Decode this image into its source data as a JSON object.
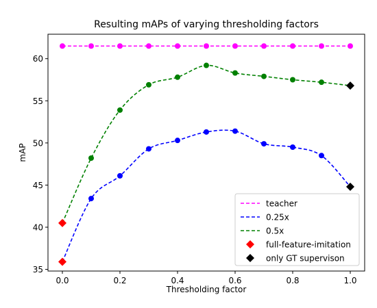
{
  "chart_data": {
    "type": "line",
    "title": "Resulting mAPs of varying thresholding factors",
    "xlabel": "Thresholding factor",
    "ylabel": "mAP",
    "xlim": [
      -0.05,
      1.05
    ],
    "ylim": [
      34.8,
      62.9
    ],
    "xticks": [
      0.0,
      0.2,
      0.4,
      0.6,
      0.8,
      1.0
    ],
    "xtick_labels": [
      "0.0",
      "0.2",
      "0.4",
      "0.6",
      "0.8",
      "1.0"
    ],
    "yticks": [
      35,
      40,
      45,
      50,
      55,
      60
    ],
    "ytick_labels": [
      "35",
      "40",
      "45",
      "50",
      "55",
      "60"
    ],
    "grid": false,
    "legend_position": "lower-right",
    "x": [
      0.1,
      0.2,
      0.3,
      0.4,
      0.5,
      0.6,
      0.7,
      0.8,
      0.9
    ],
    "series": [
      {
        "name": "teacher",
        "color": "#ff00ff",
        "style": "dashed",
        "x": [
          0.0,
          0.1,
          0.2,
          0.3,
          0.4,
          0.5,
          0.6,
          0.7,
          0.8,
          0.9,
          1.0
        ],
        "values": [
          61.5,
          61.5,
          61.5,
          61.5,
          61.5,
          61.5,
          61.5,
          61.5,
          61.5,
          61.5,
          61.5
        ],
        "markers": [
          61.5,
          61.5,
          61.5,
          61.5,
          61.5,
          61.5,
          61.5,
          61.5,
          61.5,
          61.5,
          61.5
        ]
      },
      {
        "name": "0.25x",
        "color": "#0000ff",
        "style": "dashed",
        "x": [
          0.0,
          0.1,
          0.2,
          0.3,
          0.4,
          0.5,
          0.6,
          0.7,
          0.8,
          0.9,
          1.0
        ],
        "values": [
          35.9,
          43.4,
          46.1,
          49.3,
          50.3,
          51.3,
          51.4,
          49.9,
          49.5,
          48.5,
          44.8
        ],
        "markers": [
          null,
          43.4,
          46.1,
          49.3,
          50.3,
          51.3,
          51.4,
          49.9,
          49.5,
          48.5,
          null
        ]
      },
      {
        "name": "0.5x",
        "color": "#008000",
        "style": "dashed",
        "x": [
          0.0,
          0.1,
          0.2,
          0.3,
          0.4,
          0.5,
          0.6,
          0.7,
          0.8,
          0.9,
          1.0
        ],
        "values": [
          40.5,
          48.2,
          53.9,
          56.9,
          57.8,
          59.2,
          58.3,
          57.9,
          57.5,
          57.2,
          56.8
        ],
        "markers": [
          null,
          48.2,
          53.9,
          56.9,
          57.8,
          59.2,
          58.3,
          57.9,
          57.5,
          57.2,
          null
        ]
      }
    ],
    "special_points": [
      {
        "name": "full-feature-imitation",
        "color": "#ff0000",
        "marker": "diamond",
        "points": [
          {
            "x": 0.0,
            "y": 40.5
          },
          {
            "x": 0.0,
            "y": 35.9
          }
        ]
      },
      {
        "name": "only GT supervison",
        "color": "#000000",
        "marker": "diamond",
        "points": [
          {
            "x": 1.0,
            "y": 56.8
          },
          {
            "x": 1.0,
            "y": 44.8
          }
        ]
      }
    ]
  }
}
